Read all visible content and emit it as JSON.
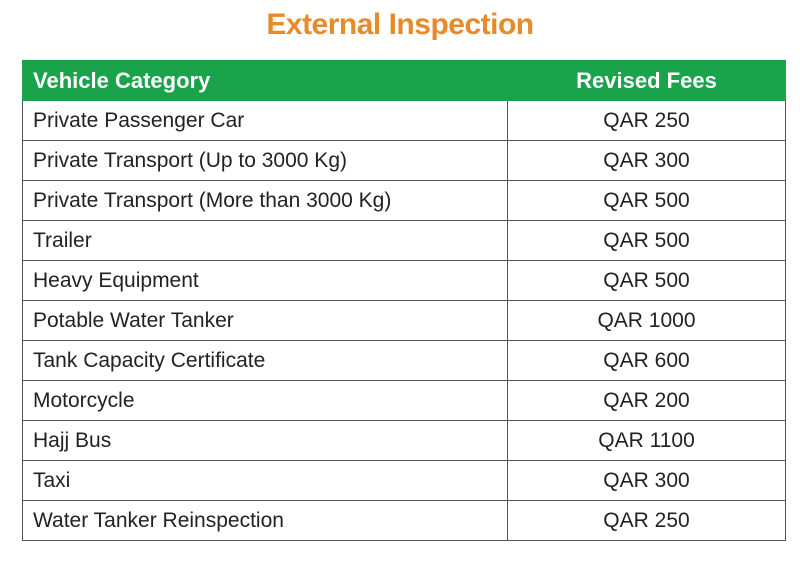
{
  "header": {
    "title": "External Inspection"
  },
  "table": {
    "columns": [
      "Vehicle Category",
      "Revised Fees"
    ],
    "rows": [
      [
        "Private Passenger Car",
        "QAR 250"
      ],
      [
        "Private Transport (Up to 3000 Kg)",
        "QAR 300"
      ],
      [
        "Private Transport (More than 3000 Kg)",
        "QAR 500"
      ],
      [
        "Trailer",
        "QAR 500"
      ],
      [
        "Heavy Equipment",
        "QAR 500"
      ],
      [
        "Potable Water Tanker",
        "QAR 1000"
      ],
      [
        "Tank Capacity Certificate",
        "QAR 600"
      ],
      [
        "Motorcycle",
        "QAR 200"
      ],
      [
        "Hajj Bus",
        "QAR 1100"
      ],
      [
        "Taxi",
        "QAR 300"
      ],
      [
        "Water Tanker Reinspection",
        "QAR 250"
      ]
    ]
  }
}
